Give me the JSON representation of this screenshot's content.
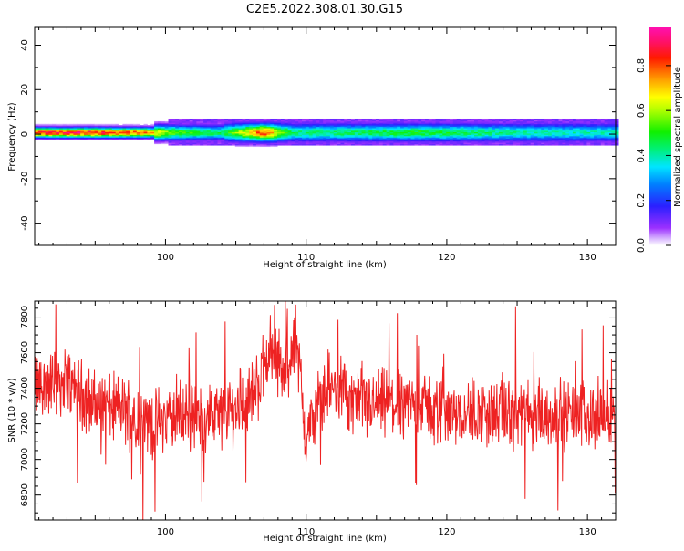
{
  "title": "C2E5.2022.308.01.30.G15",
  "chart_data": [
    {
      "type": "heatmap",
      "xlabel": "Height of straight line (km)",
      "ylabel": "Frequency (Hz)",
      "xlim": [
        90.7,
        132
      ],
      "ylim": [
        -50,
        48
      ],
      "xticks": [
        100,
        110,
        120,
        130
      ],
      "yticks": [
        40,
        20,
        0,
        -20,
        -40
      ],
      "colorbar": {
        "label": "Normalized spectral amplitude",
        "range": [
          0,
          0.97
        ],
        "ticks": [
          "0.0",
          "0.2",
          "0.4",
          "0.6",
          "0.8"
        ],
        "colormap": "rainbow (purple-blue-cyan-green-yellow-red-magenta)"
      },
      "band": {
        "center_freq_hz": 0.8,
        "core_amplitude_profile": [
          {
            "x": 90.7,
            "amp": 0.88
          },
          {
            "x": 95,
            "amp": 0.9
          },
          {
            "x": 98.5,
            "amp": 0.8
          },
          {
            "x": 100,
            "amp": 0.6
          },
          {
            "x": 102,
            "amp": 0.5
          },
          {
            "x": 104,
            "amp": 0.45
          },
          {
            "x": 107,
            "amp": 0.82
          },
          {
            "x": 109,
            "amp": 0.45
          },
          {
            "x": 112,
            "amp": 0.45
          },
          {
            "x": 118,
            "amp": 0.5
          },
          {
            "x": 125,
            "amp": 0.42
          },
          {
            "x": 132,
            "amp": 0.4
          }
        ]
      }
    },
    {
      "type": "line",
      "xlabel": "Height of straight line (km)",
      "ylabel": "SNR (10 * v/v)",
      "xlim": [
        90.7,
        132
      ],
      "ylim": [
        6660,
        7890
      ],
      "xticks": [
        100,
        110,
        120,
        130
      ],
      "yticks": [
        6800,
        7000,
        7200,
        7400,
        7600,
        7800
      ],
      "series": [
        {
          "color": "#ee2222",
          "trend": [
            {
              "x": 90.7,
              "y": 7400
            },
            {
              "x": 93,
              "y": 7450
            },
            {
              "x": 95,
              "y": 7300
            },
            {
              "x": 97,
              "y": 7280
            },
            {
              "x": 99,
              "y": 7200
            },
            {
              "x": 101,
              "y": 7250
            },
            {
              "x": 103,
              "y": 7230
            },
            {
              "x": 105,
              "y": 7280
            },
            {
              "x": 106.5,
              "y": 7400
            },
            {
              "x": 107.5,
              "y": 7650
            },
            {
              "x": 108.5,
              "y": 7450
            },
            {
              "x": 109.3,
              "y": 7700
            },
            {
              "x": 110,
              "y": 7100
            },
            {
              "x": 110.5,
              "y": 7250
            },
            {
              "x": 111.5,
              "y": 7420
            },
            {
              "x": 114,
              "y": 7300
            },
            {
              "x": 117,
              "y": 7320
            },
            {
              "x": 120,
              "y": 7280
            },
            {
              "x": 124,
              "y": 7250
            },
            {
              "x": 128,
              "y": 7250
            },
            {
              "x": 132,
              "y": 7250
            }
          ]
        }
      ]
    }
  ]
}
